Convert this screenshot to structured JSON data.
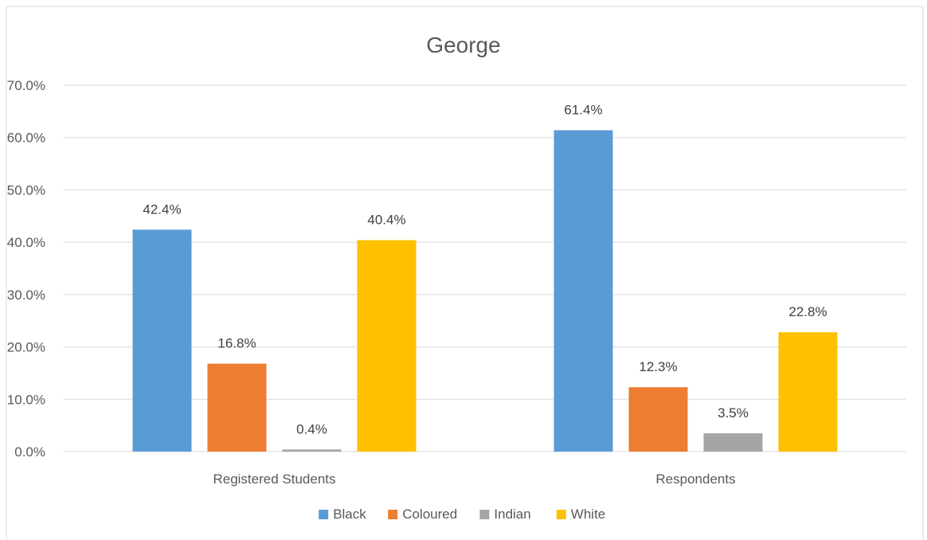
{
  "chart_data": {
    "type": "bar",
    "title": "George",
    "xlabel": "",
    "ylabel": "",
    "ylim": [
      0,
      70
    ],
    "yticks": [
      "0.0%",
      "10.0%",
      "20.0%",
      "30.0%",
      "40.0%",
      "50.0%",
      "60.0%",
      "70.0%"
    ],
    "ytick_values": [
      0,
      10,
      20,
      30,
      40,
      50,
      60,
      70
    ],
    "categories": [
      "Registered Students",
      "Respondents"
    ],
    "series": [
      {
        "name": "Black",
        "values": [
          42.4,
          61.4
        ],
        "labels": [
          "42.4%",
          "61.4%"
        ],
        "color": "#5b9bd5"
      },
      {
        "name": "Coloured",
        "values": [
          16.8,
          12.3
        ],
        "labels": [
          "16.8%",
          "12.3%"
        ],
        "color": "#ed7d31"
      },
      {
        "name": "Indian",
        "values": [
          0.4,
          3.5
        ],
        "labels": [
          "0.4%",
          "3.5%"
        ],
        "color": "#a5a5a5"
      },
      {
        "name": "White",
        "values": [
          40.4,
          22.8
        ],
        "labels": [
          "40.4%",
          "22.8%"
        ],
        "color": "#ffc000"
      }
    ],
    "grid": true,
    "legend_position": "bottom"
  }
}
